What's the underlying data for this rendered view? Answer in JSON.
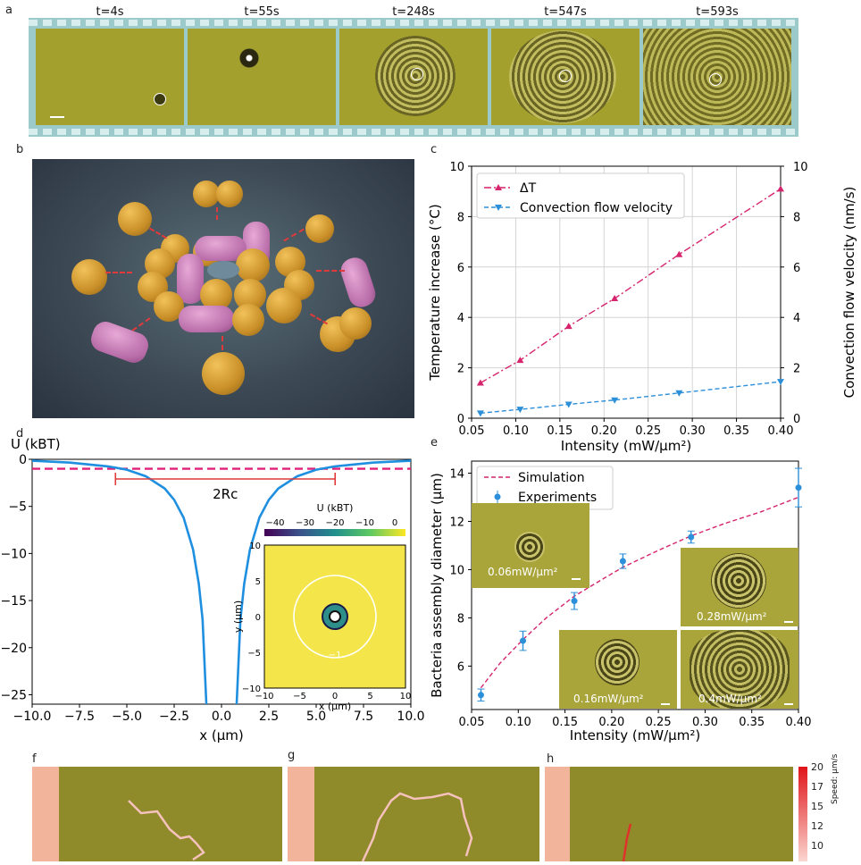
{
  "panel_labels": {
    "a": "a",
    "b": "b",
    "c": "c",
    "d": "d",
    "e": "e",
    "f": "f",
    "g": "g",
    "h": "h"
  },
  "timelapse": {
    "frames": [
      "t=4s",
      "t=55s",
      "t=248s",
      "t=547s",
      "t=593s"
    ]
  },
  "colors": {
    "delta_t": "#d6246e",
    "flow": "#2b8fd9",
    "potential": "#1f8fe0",
    "threshold": "#e0217a",
    "bracket": "#e03a3a",
    "micro_bg": "#a9a53a",
    "film": "#9cc9c9"
  },
  "chart_data": [
    {
      "id": "c",
      "type": "line",
      "xlabel": "Intensity (mW/μm²)",
      "ylabel": "Temperature increase (°C)",
      "ylabel_right": "Convection flow velocity (nm/s)",
      "xlim": [
        0.05,
        0.4
      ],
      "ylim": [
        0,
        10
      ],
      "ylim_right": [
        0,
        10
      ],
      "xticks": [
        "0.05",
        "0.10",
        "0.15",
        "0.20",
        "0.25",
        "0.30",
        "0.35",
        "0.40"
      ],
      "yticks": [
        "0",
        "2",
        "4",
        "6",
        "8",
        "10"
      ],
      "yticks_right": [
        "0",
        "2",
        "4",
        "6",
        "8",
        "10"
      ],
      "grid": true,
      "legend": "top-left",
      "series": [
        {
          "name": "ΔT",
          "marker": "triangle-up",
          "x": [
            0.06,
            0.105,
            0.16,
            0.212,
            0.285,
            0.4
          ],
          "y": [
            1.4,
            2.3,
            3.65,
            4.75,
            6.5,
            9.1
          ]
        },
        {
          "name": "Convection flow velocity",
          "marker": "triangle-down",
          "axis": "right",
          "x": [
            0.06,
            0.105,
            0.16,
            0.212,
            0.285,
            0.4
          ],
          "y": [
            0.2,
            0.35,
            0.55,
            0.72,
            1.0,
            1.45
          ]
        }
      ]
    },
    {
      "id": "d",
      "type": "line",
      "ylabel": "U (kBT)",
      "xlabel": "x (μm)",
      "xlim": [
        -10,
        10
      ],
      "ylim": [
        -26,
        0
      ],
      "xticks": [
        "−10.0",
        "−7.5",
        "−5.0",
        "−2.5",
        "0.0",
        "2.5",
        "5.0",
        "7.5",
        "10.0"
      ],
      "yticks": [
        "0",
        "−5",
        "−10",
        "−15",
        "−20",
        "−25"
      ],
      "series": [
        {
          "x": [
            -10,
            -8,
            -6,
            -5,
            -4,
            -3,
            -2.5,
            -2,
            -1.5,
            -1.2,
            -1,
            -0.8,
            0.8,
            1,
            1.2,
            1.5,
            2,
            2.5,
            3,
            4,
            5,
            6,
            8,
            10
          ],
          "y": [
            -0.15,
            -0.35,
            -0.75,
            -1.1,
            -1.8,
            -3.1,
            -4.3,
            -6.2,
            -9.6,
            -13.2,
            -17,
            -26,
            -26,
            -17,
            -13.2,
            -9.6,
            -6.2,
            -4.3,
            -3.1,
            -1.8,
            -1.1,
            -0.75,
            -0.35,
            -0.15
          ]
        }
      ],
      "threshold": -1,
      "annotation": {
        "text": "2Rc",
        "x_from": -5.6,
        "x_to": 6.0
      }
    },
    {
      "id": "d-inset",
      "type": "heatmap",
      "title": "U (kBT)",
      "colorbar_ticks": [
        "−40",
        "−30",
        "−20",
        "−10",
        "0"
      ],
      "xlabel": "x (μm)",
      "ylabel": "y (μm)",
      "xticks": [
        "−10",
        "−5",
        "0",
        "5",
        "10"
      ],
      "yticks": [
        "10",
        "5",
        "0",
        "−5",
        "−10"
      ],
      "contour_label": "−1"
    },
    {
      "id": "e",
      "type": "line",
      "xlabel": "Intensity (mW/μm²)",
      "ylabel": "Bacteria assembly diameter (μm)",
      "xlim": [
        0.05,
        0.4
      ],
      "ylim": [
        4.2,
        14.5
      ],
      "xticks": [
        "0.05",
        "0.10",
        "0.15",
        "0.20",
        "0.25",
        "0.30",
        "0.35",
        "0.40"
      ],
      "yticks": [
        "6",
        "8",
        "10",
        "12",
        "14"
      ],
      "legend": "top-left",
      "series": [
        {
          "name": "Simulation",
          "x": [
            0.06,
            0.08,
            0.105,
            0.13,
            0.16,
            0.19,
            0.212,
            0.25,
            0.285,
            0.32,
            0.36,
            0.4
          ],
          "y": [
            5.1,
            6.1,
            7.1,
            8.0,
            8.9,
            9.6,
            10.1,
            10.8,
            11.4,
            11.9,
            12.4,
            13.0
          ]
        },
        {
          "name": "Experiments",
          "x": [
            0.06,
            0.105,
            0.16,
            0.212,
            0.285,
            0.4
          ],
          "y": [
            4.8,
            7.05,
            8.7,
            10.35,
            11.35,
            13.4
          ],
          "err": [
            0.25,
            0.4,
            0.35,
            0.3,
            0.25,
            0.8
          ]
        }
      ],
      "insets": [
        "0.06mW/μm²",
        "0.28mW/μm²",
        "0.16mW/μm²",
        "0.4mW/μm²"
      ]
    }
  ],
  "track_panel_h": {
    "colorbar_ticks": [
      "20",
      "17",
      "15",
      "12",
      "10"
    ],
    "colorbar_label": "Speed: μm/s"
  }
}
